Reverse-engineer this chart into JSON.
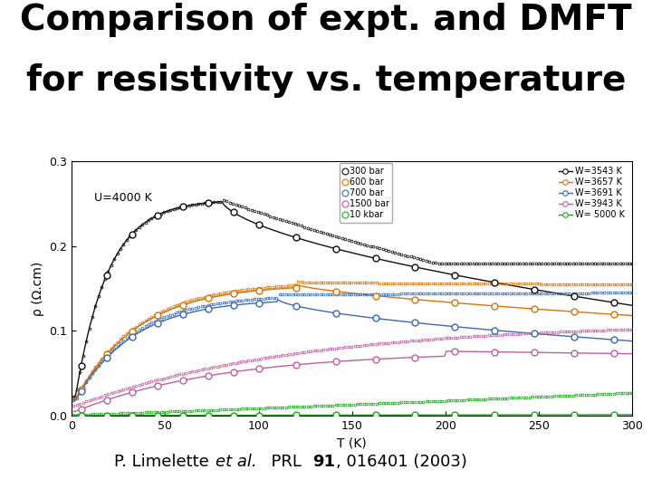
{
  "title_line1": "Comparison of expt. and DMFT",
  "title_line2": "for resistivity vs. temperature",
  "xlabel": "T (K)",
  "ylabel": "ρ (Ω.cm)",
  "annotation": "U=4000 K",
  "xlim": [
    0,
    300
  ],
  "ylim": [
    0.0,
    0.3
  ],
  "yticks": [
    0.0,
    0.1,
    0.2,
    0.3
  ],
  "xticks": [
    0,
    50,
    100,
    150,
    200,
    250,
    300
  ],
  "expt_labels": [
    "300 bar",
    "600 bar",
    "700 bar",
    "1500 bar",
    "10 kbar"
  ],
  "expt_colors": [
    "#111111",
    "#d4760a",
    "#3a6ab5",
    "#c060a0",
    "#1aaa1a"
  ],
  "dmft_labels": [
    "W=3543 K",
    "W=3657 K",
    "W=3691 K",
    "W=3943 K",
    "W= 5000 K"
  ],
  "dmft_colors": [
    "#111111",
    "#d4760a",
    "#3a6ab5",
    "#c060a0",
    "#1aaa1a"
  ],
  "background_color": "#ffffff",
  "title_fontsize": 28,
  "axis_fontsize": 10,
  "tick_fontsize": 9,
  "citation_normal": "P. Limelette ",
  "citation_italic": "et al.",
  "citation_rest": "  PRL ",
  "citation_bold": "91",
  "citation_end": ", 016401 (2003)",
  "citation_fontsize": 13
}
